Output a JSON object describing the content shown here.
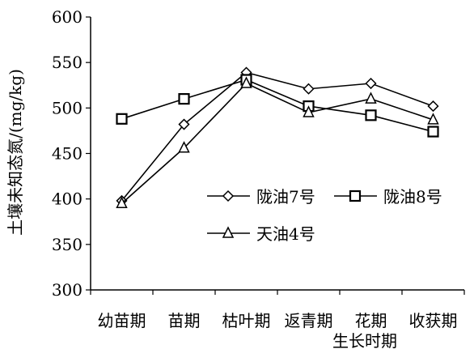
{
  "chart_data": {
    "type": "line",
    "categories": [
      "幼苗期",
      "苗期",
      "枯叶期",
      "返青期",
      "花期",
      "收获期"
    ],
    "xlabel": "生长时期",
    "ylabel": "土壤未知态氮/(mg/kg)",
    "ylim": [
      300,
      600
    ],
    "yticks": [
      "300",
      "350",
      "400",
      "450",
      "500",
      "550",
      "600"
    ],
    "grid": false,
    "legend_position": "inside-lower-right",
    "series": [
      {
        "name": "陇油7号",
        "marker": "diamond",
        "values": [
          398,
          482,
          539,
          521,
          527,
          502
        ]
      },
      {
        "name": "陇油8号",
        "marker": "square",
        "values": [
          488,
          510,
          531,
          502,
          492,
          474
        ]
      },
      {
        "name": "天油4号",
        "marker": "triangle",
        "values": [
          395,
          456,
          527,
          495,
          510,
          487
        ]
      }
    ],
    "colors": {
      "line": "#000000",
      "background": "#ffffff"
    }
  }
}
